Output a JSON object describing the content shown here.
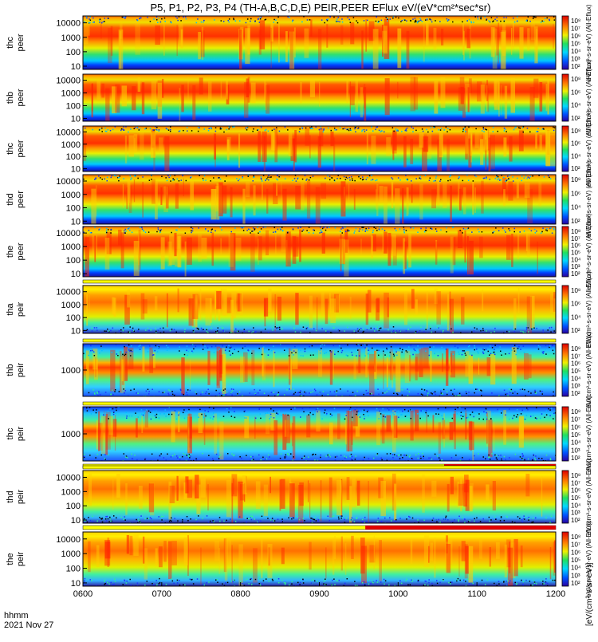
{
  "chart_data": {
    "type": "heatmap",
    "title": "P5, P1, P2, P3, P4 (TH-A,B,C,D,E) PEIR,PEER EFlux eV/(eV*cm²*sec*sr)",
    "x_ticks": [
      "0600",
      "0700",
      "0800",
      "0900",
      "1000",
      "1100",
      "1200"
    ],
    "x_range": [
      "0600",
      "1200"
    ],
    "x_units_label": "hhmm",
    "date_label": "2021 Nov 27",
    "colorbar_ticks": [
      "10⁸",
      "10⁷",
      "10⁶",
      "10⁵",
      "10⁴",
      "10³",
      "10²"
    ],
    "colorbar_ticks_peir": [
      "10⁸",
      "10⁷",
      "10⁶",
      "10⁵",
      "10⁴",
      "10³",
      "10²"
    ],
    "colorbar_label_peer": "eV/(cm²-s-sr-eV) (All-Eflux)",
    "colorbar_label_peir": "eV/(cm²-s-sr-eV) (All-Eflux)",
    "colorbar_bottom_label": "[eV/(cm²-s-sr-eV)]",
    "panels": [
      {
        "probe": "thc",
        "inst": "peer",
        "y_ticks": [
          "10000",
          "1000",
          "100",
          "10"
        ],
        "y_range": [
          6,
          30000
        ]
      },
      {
        "probe": "thb",
        "inst": "peer",
        "y_ticks": [
          "10000",
          "1000",
          "100",
          "10"
        ],
        "y_range": [
          6,
          30000
        ]
      },
      {
        "probe": "thc",
        "inst": "peer",
        "y_ticks": [
          "10000",
          "1000",
          "100",
          "10"
        ],
        "y_range": [
          6,
          30000
        ]
      },
      {
        "probe": "thd",
        "inst": "peer",
        "y_ticks": [
          "10000",
          "1000",
          "100",
          "10"
        ],
        "y_range": [
          6,
          30000
        ]
      },
      {
        "probe": "the",
        "inst": "peer",
        "y_ticks": [
          "10000",
          "1000",
          "100",
          "10"
        ],
        "y_range": [
          6,
          30000
        ]
      },
      {
        "probe": "tha",
        "inst": "peir",
        "y_ticks": [
          "10000",
          "1000",
          "100",
          "10"
        ],
        "y_range": [
          6,
          30000
        ]
      },
      {
        "probe": "thb",
        "inst": "peir",
        "y_ticks": [
          "1000"
        ],
        "y_range": [
          100,
          10000
        ]
      },
      {
        "probe": "thc",
        "inst": "peir",
        "y_ticks": [
          "1000"
        ],
        "y_range": [
          100,
          10000
        ]
      },
      {
        "probe": "thd",
        "inst": "peir",
        "y_ticks": [
          "10000",
          "1000",
          "100",
          "10"
        ],
        "y_range": [
          6,
          30000
        ]
      },
      {
        "probe": "the",
        "inst": "peir",
        "y_ticks": [
          "10000",
          "1000",
          "100",
          "10"
        ],
        "y_range": [
          6,
          30000
        ]
      }
    ],
    "mode_bars": [
      {
        "after_panel": 8,
        "red_from": "1035",
        "red_to": "1200"
      },
      {
        "after_panel": 9,
        "red_from": "0935",
        "red_to": "1200"
      }
    ]
  }
}
